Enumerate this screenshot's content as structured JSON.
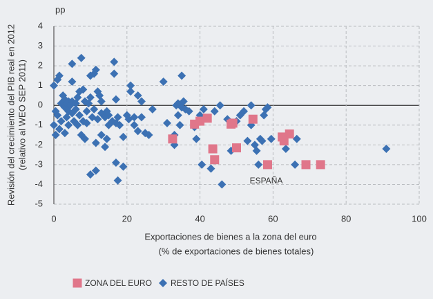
{
  "chart_data": {
    "type": "scatter",
    "y_unit": "pp",
    "y_label": [
      "Revisión del crecimiento del PIB real en 2012",
      "(relativo al WEO SEP 2011)"
    ],
    "x_label": [
      "Exportaciones de bienes a la zona del euro",
      "(% de exportaciones de bienes totales)"
    ],
    "annotation": "ESPAÑA",
    "xlim": [
      0,
      100
    ],
    "xticks": [
      0,
      20,
      40,
      60,
      80,
      100
    ],
    "ylim": [
      -5,
      4
    ],
    "yticks": [
      -5,
      -4,
      -3,
      -2,
      -1,
      0,
      1,
      2,
      3,
      4
    ],
    "grid": true,
    "series": [
      {
        "name": "ZONA DEL EURO",
        "color": "#e0768a",
        "marker": "square",
        "x": [
          32.5,
          38.5,
          40,
          42,
          43.5,
          44,
          48.5,
          49,
          50,
          54.5,
          58.5,
          62.5,
          63,
          64.5,
          69,
          73
        ],
        "values": [
          -1.7,
          -0.95,
          -0.8,
          -0.65,
          -2.2,
          -2.75,
          -0.95,
          -0.9,
          -2.15,
          -0.7,
          -3,
          -1.6,
          -1.8,
          -1.45,
          -3,
          -3
        ]
      },
      {
        "name": "RESTO DE PAÍSES",
        "color": "#3c71b3",
        "marker": "diamond",
        "x": [
          0,
          0,
          0.5,
          0.5,
          1,
          1.5,
          1,
          1.5,
          2,
          2,
          2.5,
          3,
          3,
          3,
          3.5,
          3.5,
          4,
          4,
          4,
          4.5,
          5,
          5,
          5,
          5,
          5.5,
          6,
          6,
          6.5,
          6.5,
          7,
          7,
          7.5,
          7.5,
          8,
          8,
          8.5,
          8.5,
          9,
          9,
          9.5,
          10,
          10,
          10,
          10.5,
          11,
          11,
          11.5,
          11.5,
          11.5,
          12,
          12,
          12.5,
          13,
          13,
          13,
          14,
          14,
          14.5,
          14.5,
          15,
          15,
          16,
          16.5,
          16.5,
          17,
          17,
          17,
          17.5,
          17.5,
          18,
          19,
          19,
          20,
          20.5,
          21,
          21,
          22,
          22,
          23,
          23,
          24,
          24,
          25,
          26,
          27,
          30,
          31,
          33,
          33,
          33.5,
          34,
          34,
          34.5,
          35,
          35,
          35.5,
          36,
          37,
          38.5,
          39,
          40,
          40.5,
          41,
          43,
          44,
          45.5,
          46,
          47.5,
          48.5,
          50,
          51,
          52,
          53,
          54,
          54,
          55,
          55.5,
          56,
          56.5,
          57,
          57.5,
          58,
          58.5,
          59.5,
          63.5,
          66,
          66.5,
          91
        ],
        "values": [
          1,
          -1,
          -0.3,
          -1.5,
          1.3,
          1.5,
          -0.5,
          -1.2,
          -0.8,
          0.1,
          0.5,
          -0.1,
          0.3,
          -1.4,
          0.1,
          -0.6,
          0.2,
          -1,
          -0.3,
          0,
          2.1,
          1.2,
          0.2,
          -0.4,
          -0.8,
          0.1,
          -0.2,
          0.4,
          -1,
          -0.5,
          0.7,
          2.4,
          -1.5,
          0.8,
          -0.8,
          -1.7,
          0.2,
          -0.3,
          -0.9,
          0.1,
          -3.5,
          0.4,
          1.5,
          -0.6,
          1.6,
          -0.2,
          1.8,
          -3.3,
          -1.9,
          0.7,
          -0.7,
          0.5,
          -1.5,
          -0.4,
          0.2,
          -2.1,
          -0.6,
          -0.3,
          -1.7,
          -1,
          -0.5,
          -0.8,
          1.6,
          2.2,
          0.3,
          -0.9,
          -2.9,
          -3.8,
          -0.6,
          -1,
          -1.6,
          -3.1,
          -0.5,
          -0.7,
          0.7,
          1,
          -0.6,
          -1,
          0.5,
          -1.3,
          0.2,
          -0.6,
          -1.4,
          -1.5,
          -0.2,
          1.2,
          -0.9,
          -2,
          -1.5,
          0,
          0.1,
          -0.5,
          -1,
          1.5,
          -0.1,
          0.2,
          -0.2,
          -0.3,
          -1.1,
          -1.7,
          -0.5,
          -3,
          -0.2,
          -3.2,
          -0.3,
          0,
          -4,
          -0.7,
          -2.3,
          -0.8,
          -0.5,
          -0.3,
          -1.8,
          0,
          -1,
          -2,
          -2.3,
          -3,
          -1.7,
          -1.8,
          -0.5,
          -0.2,
          -0.1,
          -1.7,
          -2.2,
          -3,
          -1.7,
          -2.2
        ]
      }
    ]
  }
}
